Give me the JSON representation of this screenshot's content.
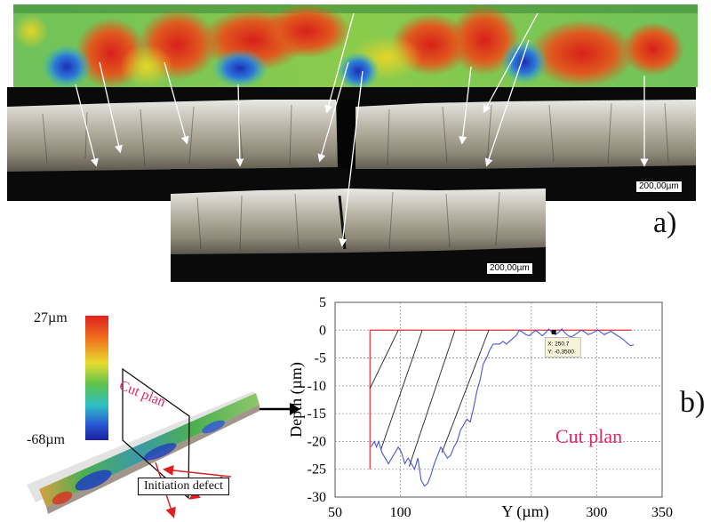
{
  "panel_a": {
    "label": "a)",
    "scale_bar_top": "200,00µm",
    "scale_bar_bottom": "200,00µm"
  },
  "panel_b": {
    "label": "b)",
    "colorbar_max": "27µm",
    "colorbar_min": "-68µm",
    "cut_plan_label_3d": "Cut plan",
    "initiation_label": "Initiation defect",
    "cut_plan_label_chart": "Cut plan",
    "cursor_readout": [
      "X: 250.7",
      "Y: -0.3500"
    ]
  },
  "colors": {
    "profile_line": "#4a55d6",
    "reference_line": "#e53030",
    "cut_plan_text": "#e8246a"
  },
  "chart_data": {
    "type": "line",
    "xlabel": "Y (µm)",
    "ylabel": "Depth (µm)",
    "xlim": [
      50,
      350
    ],
    "ylim": [
      -30,
      5
    ],
    "x_ticks": [
      "50",
      "100",
      "",
      "",
      "300",
      "350"
    ],
    "y_ticks": [
      "5",
      "0",
      "-5",
      "-10",
      "-15",
      "-20",
      "-25",
      "-30"
    ],
    "grid": true,
    "series": [
      {
        "x": [
          83,
          86,
          88,
          90,
          93,
          96,
          99,
          102,
          105,
          108,
          111,
          114,
          117,
          120,
          123,
          126,
          129,
          132,
          135,
          138,
          141,
          144,
          147,
          150,
          153,
          156,
          159,
          162,
          165,
          168,
          171,
          174,
          177,
          180,
          183,
          186,
          189,
          192,
          195,
          198,
          201,
          204,
          207,
          210,
          213,
          216,
          219,
          222,
          225,
          228,
          231,
          234,
          237,
          240,
          243,
          246,
          249,
          252,
          255,
          258,
          261,
          264,
          267,
          270,
          273,
          276,
          279,
          282,
          285,
          288,
          291,
          294,
          297,
          300,
          303,
          306,
          309,
          312,
          315,
          318,
          321,
          324
        ],
        "y": [
          -21,
          -20,
          -21,
          -20,
          -22,
          -23,
          -24,
          -23,
          -22,
          -21,
          -22,
          -24,
          -23,
          -24,
          -25,
          -23,
          -27,
          -28,
          -27.5,
          -26,
          -24,
          -22.5,
          -21,
          -22,
          -23,
          -22.5,
          -21,
          -20,
          -18,
          -17,
          -16,
          -16.5,
          -14,
          -11,
          -9,
          -6,
          -5,
          -3.5,
          -2.5,
          -2.5,
          -2.5,
          -2,
          -2.5,
          -2,
          -1.5,
          -1,
          0,
          -0.35,
          -0.8,
          -1,
          -0.5,
          0,
          -0.5,
          -1,
          -0.5,
          0.2,
          -0.4,
          -0.8,
          -0.4,
          0.2,
          -0.5,
          -1,
          -1.2,
          -0.8,
          -0.4,
          0,
          -0.3,
          -0.8,
          -0.6,
          -0.3,
          0.1,
          -0.4,
          -0.8,
          -0.5,
          -0.2,
          -0.6,
          -1,
          -1.3,
          -1.8,
          -2.3,
          -2.8,
          -2.6
        ]
      }
    ]
  }
}
